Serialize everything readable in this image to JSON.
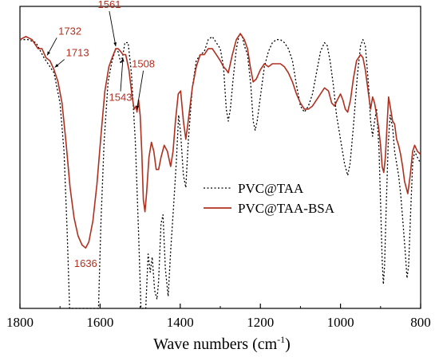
{
  "chart_data": {
    "type": "line",
    "title": "",
    "xlabel": "Wave numbers (cm",
    "xlabel_sup": "-1",
    "xlabel_close": ")",
    "ylabel": "",
    "xlim": [
      1800,
      800
    ],
    "ylim": [
      0,
      1
    ],
    "x_reversed": true,
    "xticks": [
      1800,
      1600,
      1400,
      1200,
      1000,
      800
    ],
    "grid": false,
    "legend_position": "center-right",
    "series": [
      {
        "name": "PVC@TAA",
        "color": "#000000",
        "style": "dotted",
        "points": [
          [
            1800,
            0.89
          ],
          [
            1780,
            0.89
          ],
          [
            1760,
            0.88
          ],
          [
            1740,
            0.83
          ],
          [
            1730,
            0.81
          ],
          [
            1715,
            0.78
          ],
          [
            1700,
            0.68
          ],
          [
            1690,
            0.52
          ],
          [
            1682,
            0.25
          ],
          [
            1676,
            0.0
          ],
          [
            1604,
            0.0
          ],
          [
            1598,
            0.28
          ],
          [
            1590,
            0.55
          ],
          [
            1580,
            0.75
          ],
          [
            1570,
            0.82
          ],
          [
            1561,
            0.86
          ],
          [
            1555,
            0.85
          ],
          [
            1548,
            0.81
          ],
          [
            1543,
            0.84
          ],
          [
            1538,
            0.88
          ],
          [
            1530,
            0.88
          ],
          [
            1522,
            0.78
          ],
          [
            1512,
            0.55
          ],
          [
            1504,
            0.25
          ],
          [
            1498,
            0.0
          ],
          [
            1486,
            0.0
          ],
          [
            1480,
            0.18
          ],
          [
            1475,
            0.12
          ],
          [
            1470,
            0.17
          ],
          [
            1464,
            0.06
          ],
          [
            1458,
            0.03
          ],
          [
            1454,
            0.09
          ],
          [
            1448,
            0.28
          ],
          [
            1443,
            0.31
          ],
          [
            1437,
            0.13
          ],
          [
            1430,
            0.04
          ],
          [
            1424,
            0.19
          ],
          [
            1418,
            0.31
          ],
          [
            1410,
            0.48
          ],
          [
            1404,
            0.64
          ],
          [
            1399,
            0.58
          ],
          [
            1392,
            0.44
          ],
          [
            1386,
            0.4
          ],
          [
            1380,
            0.55
          ],
          [
            1370,
            0.73
          ],
          [
            1360,
            0.82
          ],
          [
            1350,
            0.84
          ],
          [
            1340,
            0.85
          ],
          [
            1330,
            0.89
          ],
          [
            1320,
            0.9
          ],
          [
            1310,
            0.88
          ],
          [
            1300,
            0.86
          ],
          [
            1292,
            0.8
          ],
          [
            1285,
            0.66
          ],
          [
            1280,
            0.62
          ],
          [
            1275,
            0.66
          ],
          [
            1268,
            0.76
          ],
          [
            1260,
            0.86
          ],
          [
            1252,
            0.91
          ],
          [
            1245,
            0.9
          ],
          [
            1240,
            0.87
          ],
          [
            1232,
            0.84
          ],
          [
            1224,
            0.74
          ],
          [
            1218,
            0.62
          ],
          [
            1213,
            0.59
          ],
          [
            1208,
            0.62
          ],
          [
            1200,
            0.7
          ],
          [
            1190,
            0.8
          ],
          [
            1180,
            0.85
          ],
          [
            1170,
            0.88
          ],
          [
            1160,
            0.89
          ],
          [
            1150,
            0.89
          ],
          [
            1140,
            0.88
          ],
          [
            1130,
            0.86
          ],
          [
            1120,
            0.82
          ],
          [
            1110,
            0.74
          ],
          [
            1100,
            0.67
          ],
          [
            1090,
            0.65
          ],
          [
            1080,
            0.67
          ],
          [
            1070,
            0.71
          ],
          [
            1060,
            0.78
          ],
          [
            1050,
            0.85
          ],
          [
            1040,
            0.88
          ],
          [
            1033,
            0.87
          ],
          [
            1026,
            0.82
          ],
          [
            1018,
            0.74
          ],
          [
            1010,
            0.64
          ],
          [
            1000,
            0.56
          ],
          [
            990,
            0.48
          ],
          [
            982,
            0.44
          ],
          [
            976,
            0.48
          ],
          [
            968,
            0.6
          ],
          [
            958,
            0.77
          ],
          [
            950,
            0.87
          ],
          [
            944,
            0.89
          ],
          [
            938,
            0.87
          ],
          [
            930,
            0.74
          ],
          [
            925,
            0.62
          ],
          [
            920,
            0.57
          ],
          [
            915,
            0.62
          ],
          [
            910,
            0.66
          ],
          [
            904,
            0.53
          ],
          [
            900,
            0.35
          ],
          [
            896,
            0.16
          ],
          [
            893,
            0.08
          ],
          [
            890,
            0.14
          ],
          [
            886,
            0.33
          ],
          [
            881,
            0.54
          ],
          [
            876,
            0.64
          ],
          [
            870,
            0.6
          ],
          [
            865,
            0.52
          ],
          [
            860,
            0.48
          ],
          [
            855,
            0.44
          ],
          [
            850,
            0.38
          ],
          [
            845,
            0.3
          ],
          [
            838,
            0.18
          ],
          [
            834,
            0.1
          ],
          [
            830,
            0.14
          ],
          [
            825,
            0.32
          ],
          [
            820,
            0.48
          ],
          [
            815,
            0.52
          ],
          [
            808,
            0.5
          ],
          [
            800,
            0.48
          ]
        ]
      },
      {
        "name": "PVC@TAA-BSA",
        "color": "#b03020",
        "style": "solid",
        "points": [
          [
            1800,
            0.89
          ],
          [
            1785,
            0.9
          ],
          [
            1770,
            0.89
          ],
          [
            1755,
            0.86
          ],
          [
            1745,
            0.86
          ],
          [
            1735,
            0.83
          ],
          [
            1725,
            0.82
          ],
          [
            1715,
            0.79
          ],
          [
            1705,
            0.75
          ],
          [
            1695,
            0.68
          ],
          [
            1685,
            0.55
          ],
          [
            1675,
            0.4
          ],
          [
            1665,
            0.3
          ],
          [
            1655,
            0.24
          ],
          [
            1645,
            0.21
          ],
          [
            1636,
            0.2
          ],
          [
            1628,
            0.22
          ],
          [
            1618,
            0.29
          ],
          [
            1608,
            0.41
          ],
          [
            1598,
            0.57
          ],
          [
            1588,
            0.72
          ],
          [
            1578,
            0.8
          ],
          [
            1570,
            0.83
          ],
          [
            1561,
            0.86
          ],
          [
            1555,
            0.86
          ],
          [
            1548,
            0.85
          ],
          [
            1543,
            0.84
          ],
          [
            1536,
            0.84
          ],
          [
            1528,
            0.79
          ],
          [
            1520,
            0.7
          ],
          [
            1515,
            0.66
          ],
          [
            1510,
            0.67
          ],
          [
            1508,
            0.65
          ],
          [
            1504,
            0.69
          ],
          [
            1500,
            0.64
          ],
          [
            1496,
            0.52
          ],
          [
            1492,
            0.36
          ],
          [
            1488,
            0.32
          ],
          [
            1484,
            0.38
          ],
          [
            1478,
            0.5
          ],
          [
            1472,
            0.55
          ],
          [
            1466,
            0.52
          ],
          [
            1460,
            0.46
          ],
          [
            1454,
            0.46
          ],
          [
            1448,
            0.5
          ],
          [
            1440,
            0.54
          ],
          [
            1432,
            0.52
          ],
          [
            1424,
            0.47
          ],
          [
            1418,
            0.52
          ],
          [
            1412,
            0.62
          ],
          [
            1405,
            0.71
          ],
          [
            1399,
            0.72
          ],
          [
            1392,
            0.62
          ],
          [
            1386,
            0.56
          ],
          [
            1380,
            0.62
          ],
          [
            1370,
            0.73
          ],
          [
            1360,
            0.8
          ],
          [
            1350,
            0.84
          ],
          [
            1340,
            0.84
          ],
          [
            1330,
            0.86
          ],
          [
            1320,
            0.86
          ],
          [
            1310,
            0.84
          ],
          [
            1300,
            0.82
          ],
          [
            1292,
            0.8
          ],
          [
            1285,
            0.79
          ],
          [
            1280,
            0.78
          ],
          [
            1270,
            0.84
          ],
          [
            1260,
            0.89
          ],
          [
            1250,
            0.91
          ],
          [
            1240,
            0.89
          ],
          [
            1232,
            0.86
          ],
          [
            1225,
            0.8
          ],
          [
            1218,
            0.75
          ],
          [
            1210,
            0.76
          ],
          [
            1200,
            0.79
          ],
          [
            1190,
            0.81
          ],
          [
            1180,
            0.8
          ],
          [
            1170,
            0.81
          ],
          [
            1160,
            0.81
          ],
          [
            1150,
            0.81
          ],
          [
            1140,
            0.8
          ],
          [
            1130,
            0.78
          ],
          [
            1120,
            0.75
          ],
          [
            1110,
            0.71
          ],
          [
            1100,
            0.68
          ],
          [
            1090,
            0.66
          ],
          [
            1080,
            0.66
          ],
          [
            1070,
            0.67
          ],
          [
            1060,
            0.69
          ],
          [
            1050,
            0.71
          ],
          [
            1040,
            0.73
          ],
          [
            1030,
            0.72
          ],
          [
            1022,
            0.68
          ],
          [
            1015,
            0.67
          ],
          [
            1008,
            0.69
          ],
          [
            1000,
            0.71
          ],
          [
            994,
            0.69
          ],
          [
            988,
            0.66
          ],
          [
            982,
            0.65
          ],
          [
            975,
            0.69
          ],
          [
            968,
            0.76
          ],
          [
            960,
            0.82
          ],
          [
            950,
            0.84
          ],
          [
            944,
            0.83
          ],
          [
            938,
            0.79
          ],
          [
            930,
            0.71
          ],
          [
            925,
            0.66
          ],
          [
            920,
            0.7
          ],
          [
            915,
            0.68
          ],
          [
            910,
            0.64
          ],
          [
            905,
            0.6
          ],
          [
            900,
            0.54
          ],
          [
            896,
            0.47
          ],
          [
            892,
            0.45
          ],
          [
            888,
            0.5
          ],
          [
            884,
            0.6
          ],
          [
            880,
            0.7
          ],
          [
            876,
            0.67
          ],
          [
            870,
            0.62
          ],
          [
            865,
            0.61
          ],
          [
            860,
            0.56
          ],
          [
            855,
            0.54
          ],
          [
            850,
            0.51
          ],
          [
            845,
            0.47
          ],
          [
            840,
            0.42
          ],
          [
            836,
            0.4
          ],
          [
            832,
            0.38
          ],
          [
            826,
            0.44
          ],
          [
            820,
            0.52
          ],
          [
            815,
            0.54
          ],
          [
            808,
            0.52
          ],
          [
            800,
            0.51
          ]
        ]
      }
    ],
    "annotations": [
      {
        "text": "1732",
        "x": 1732,
        "y": 0.83,
        "color": "#b03020"
      },
      {
        "text": "1713",
        "x": 1713,
        "y": 0.79,
        "color": "#b03020"
      },
      {
        "text": "1561",
        "x": 1561,
        "y": 0.86,
        "color": "#b03020"
      },
      {
        "text": "1508",
        "x": 1508,
        "y": 0.65,
        "color": "#b03020"
      },
      {
        "text": "1543",
        "x": 1543,
        "y": 0.84,
        "color": "#b03020"
      },
      {
        "text": "1636",
        "x": 1636,
        "y": 0.2,
        "color": "#b03020"
      }
    ]
  }
}
